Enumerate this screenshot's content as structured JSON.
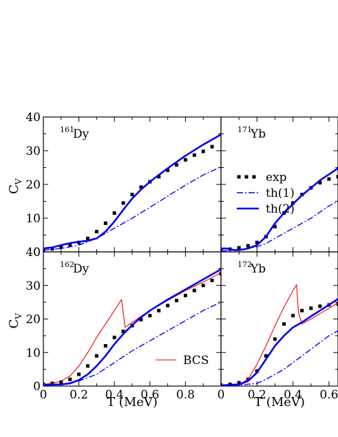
{
  "chart_data": [
    {
      "id": "p161",
      "type": "line",
      "label_sup": "161",
      "label_main": "Dy",
      "xlim": [
        0,
        1.0
      ],
      "ylim": [
        0,
        40
      ],
      "ylabel": "C",
      "ylabel_sub": "V",
      "x_ticks": [],
      "y_ticks": [
        "0",
        "10",
        "20",
        "30",
        "40"
      ],
      "series": [
        {
          "name": "exp",
          "style": "dots",
          "color": "#000000",
          "x": [
            0.0,
            0.05,
            0.1,
            0.15,
            0.2,
            0.25,
            0.3,
            0.35,
            0.4,
            0.45,
            0.5,
            0.55,
            0.6,
            0.65,
            0.7,
            0.75,
            0.8,
            0.85,
            0.9,
            0.95
          ],
          "y": [
            0.5,
            0.9,
            1.4,
            2.0,
            2.8,
            4.0,
            6.0,
            8.5,
            11.5,
            14.5,
            17.0,
            19.2,
            20.8,
            22.3,
            24.2,
            25.8,
            27.3,
            28.7,
            29.8,
            31.2
          ]
        },
        {
          "name": "th(1)",
          "style": "dashdot",
          "color": "#0000ee",
          "x": [
            0.0,
            0.1,
            0.2,
            0.3,
            0.4,
            0.5,
            0.6,
            0.7,
            0.8,
            0.9,
            1.0
          ],
          "y": [
            0.5,
            1.0,
            2.0,
            4.0,
            7.0,
            10.0,
            13.2,
            16.5,
            19.8,
            22.8,
            25.2
          ]
        },
        {
          "name": "th(2)",
          "style": "solid-thick",
          "color": "#0000ee",
          "x": [
            0.0,
            0.05,
            0.1,
            0.15,
            0.2,
            0.25,
            0.3,
            0.35,
            0.4,
            0.45,
            0.5,
            0.55,
            0.6,
            0.7,
            0.8,
            0.9,
            1.0
          ],
          "y": [
            1.0,
            1.3,
            2.0,
            2.6,
            3.0,
            3.3,
            4.0,
            6.0,
            9.0,
            12.5,
            15.8,
            18.5,
            20.8,
            24.8,
            28.5,
            31.8,
            34.8
          ]
        }
      ]
    },
    {
      "id": "p171",
      "type": "line",
      "label_sup": "171",
      "label_main": "Yb",
      "xlim": [
        0,
        0.65
      ],
      "ylim": [
        0,
        40
      ],
      "ylabel": "",
      "ylabel_sub": "",
      "x_ticks": [],
      "y_ticks": [],
      "series": [
        {
          "name": "exp",
          "style": "dots",
          "color": "#000000",
          "x": [
            0.0,
            0.05,
            0.1,
            0.15,
            0.2,
            0.25,
            0.3,
            0.35,
            0.4,
            0.45,
            0.5,
            0.55,
            0.6,
            0.65
          ],
          "y": [
            0.5,
            0.8,
            1.2,
            1.8,
            2.8,
            4.5,
            7.5,
            11.5,
            14.5,
            17.0,
            19.0,
            20.5,
            21.6,
            22.3
          ]
        },
        {
          "name": "th(1)",
          "style": "dashdot",
          "color": "#0000ee",
          "x": [
            0.0,
            0.1,
            0.15,
            0.2,
            0.25,
            0.3,
            0.35,
            0.4,
            0.45,
            0.5,
            0.55,
            0.6,
            0.65
          ],
          "y": [
            0.3,
            0.5,
            1.0,
            1.5,
            2.5,
            4.0,
            5.5,
            7.0,
            8.5,
            10.0,
            11.8,
            13.6,
            15.0
          ]
        },
        {
          "name": "th(2)",
          "style": "solid-thick",
          "color": "#0000ee",
          "x": [
            0.0,
            0.03,
            0.08,
            0.12,
            0.15,
            0.2,
            0.25,
            0.3,
            0.35,
            0.4,
            0.45,
            0.5,
            0.55,
            0.6,
            0.65
          ],
          "y": [
            1.0,
            1.0,
            0.5,
            0.7,
            1.0,
            2.0,
            4.5,
            8.5,
            11.5,
            14.2,
            16.8,
            19.0,
            21.2,
            23.0,
            24.8
          ]
        }
      ]
    },
    {
      "id": "p162",
      "type": "line",
      "label_sup": "162",
      "label_main": "Dy",
      "xlim": [
        0,
        1.0
      ],
      "ylim": [
        0,
        40
      ],
      "ylabel": "C",
      "ylabel_sub": "V",
      "x_ticks": [
        "0",
        "0.2",
        "0.4",
        "0.6",
        "0.8"
      ],
      "y_ticks": [
        "0",
        "10",
        "20",
        "30",
        "40"
      ],
      "series": [
        {
          "name": "exp",
          "style": "dots",
          "color": "#000000",
          "x": [
            0.0,
            0.05,
            0.1,
            0.15,
            0.2,
            0.25,
            0.3,
            0.35,
            0.4,
            0.45,
            0.5,
            0.55,
            0.6,
            0.65,
            0.7,
            0.75,
            0.8,
            0.85,
            0.9,
            0.95,
            1.0
          ],
          "y": [
            0.5,
            0.8,
            1.2,
            2.0,
            3.5,
            6.0,
            9.0,
            12.0,
            14.5,
            16.3,
            18.0,
            19.8,
            21.0,
            22.5,
            24.0,
            25.5,
            27.0,
            28.5,
            30.0,
            31.5,
            33.5
          ]
        },
        {
          "name": "BCS",
          "style": "solid-thin",
          "color": "#ee0000",
          "x": [
            0.0,
            0.05,
            0.1,
            0.15,
            0.2,
            0.25,
            0.3,
            0.35,
            0.4,
            0.44,
            0.46,
            0.5,
            0.55,
            0.6,
            0.7,
            0.8,
            0.9,
            1.0
          ],
          "y": [
            0.5,
            0.8,
            1.5,
            3.0,
            6.0,
            10.0,
            14.5,
            18.5,
            22.5,
            25.8,
            17.5,
            19.0,
            20.8,
            22.5,
            25.5,
            28.5,
            31.0,
            33.8
          ]
        },
        {
          "name": "th(1)",
          "style": "dashdot",
          "color": "#0000ee",
          "x": [
            0.0,
            0.1,
            0.2,
            0.3,
            0.4,
            0.5,
            0.6,
            0.7,
            0.8,
            0.9,
            1.0
          ],
          "y": [
            0.3,
            0.5,
            1.5,
            3.5,
            7.0,
            10.5,
            13.5,
            16.5,
            19.5,
            22.5,
            25.0
          ]
        },
        {
          "name": "th(2)",
          "style": "solid-thick",
          "color": "#0000ee",
          "x": [
            0.0,
            0.1,
            0.15,
            0.2,
            0.25,
            0.3,
            0.35,
            0.4,
            0.45,
            0.5,
            0.55,
            0.6,
            0.7,
            0.8,
            0.9,
            1.0
          ],
          "y": [
            0.3,
            0.5,
            0.8,
            1.8,
            3.5,
            6.0,
            9.0,
            12.5,
            15.5,
            18.2,
            20.5,
            22.5,
            25.8,
            28.8,
            31.8,
            34.8
          ]
        }
      ]
    },
    {
      "id": "p172",
      "type": "line",
      "label_sup": "172",
      "label_main": "Yb",
      "xlim": [
        0,
        0.65
      ],
      "ylim": [
        0,
        40
      ],
      "ylabel": "",
      "ylabel_sub": "",
      "x_ticks": [
        "0",
        "0.2",
        "0.4",
        "0.6"
      ],
      "y_ticks": [],
      "series": [
        {
          "name": "exp",
          "style": "dots",
          "color": "#000000",
          "x": [
            0.0,
            0.05,
            0.1,
            0.15,
            0.2,
            0.25,
            0.3,
            0.35,
            0.4,
            0.45,
            0.5,
            0.55,
            0.6,
            0.65
          ],
          "y": [
            0.3,
            0.5,
            1.0,
            2.0,
            4.5,
            9.0,
            14.0,
            18.5,
            21.0,
            22.5,
            23.2,
            23.8,
            24.2,
            24.5
          ]
        },
        {
          "name": "BCS",
          "style": "solid-thin",
          "color": "#ee0000",
          "x": [
            0.0,
            0.1,
            0.15,
            0.2,
            0.25,
            0.3,
            0.35,
            0.4,
            0.42,
            0.43,
            0.45,
            0.5,
            0.55,
            0.6,
            0.65
          ],
          "y": [
            0.3,
            0.5,
            2.0,
            6.5,
            12.0,
            18.0,
            23.5,
            28.5,
            30.2,
            22.0,
            18.5,
            20.0,
            21.6,
            23.2,
            24.8
          ]
        },
        {
          "name": "th(1)",
          "style": "dashdot",
          "color": "#0000ee",
          "x": [
            0.0,
            0.1,
            0.2,
            0.25,
            0.3,
            0.35,
            0.4,
            0.45,
            0.5,
            0.55,
            0.6,
            0.65
          ],
          "y": [
            0.2,
            0.3,
            0.8,
            2.0,
            3.5,
            5.0,
            7.0,
            9.0,
            11.0,
            13.0,
            15.0,
            16.5
          ]
        },
        {
          "name": "th(2)",
          "style": "solid-thick",
          "color": "#0000ee",
          "x": [
            0.0,
            0.1,
            0.15,
            0.2,
            0.25,
            0.3,
            0.35,
            0.4,
            0.45,
            0.5,
            0.55,
            0.6,
            0.65
          ],
          "y": [
            0.2,
            0.5,
            1.5,
            4.0,
            8.0,
            12.0,
            15.0,
            17.5,
            19.0,
            20.8,
            22.5,
            24.2,
            26.0
          ]
        }
      ]
    }
  ],
  "legend": [
    {
      "name": "exp",
      "style": "dots",
      "color": "#000000"
    },
    {
      "name": "th(1)",
      "style": "dashdot",
      "color": "#0000ee"
    },
    {
      "name": "th(2)",
      "style": "solid-thick",
      "color": "#0000ee"
    }
  ],
  "legend_bcs": {
    "name": "BCS",
    "style": "solid-thin",
    "color": "#ee0000"
  },
  "xlabel": "T (MeV)"
}
